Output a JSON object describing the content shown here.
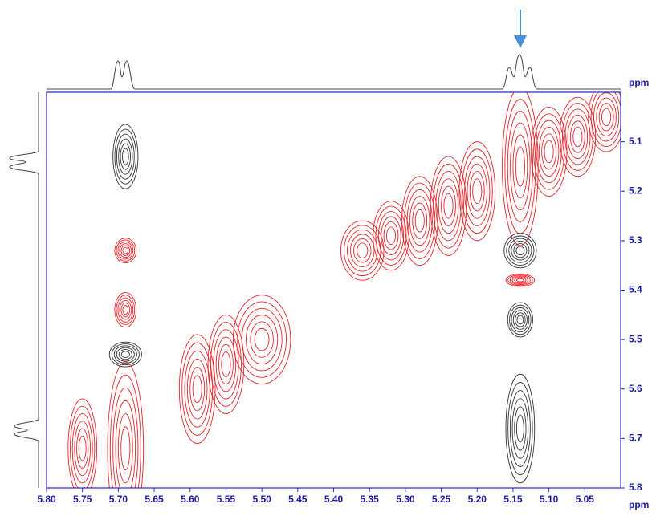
{
  "chart_data": {
    "type": "contour",
    "x_label": "ppm",
    "y_label": "ppm",
    "xlim": [
      5.8,
      5.0
    ],
    "ylim": [
      5.0,
      5.8
    ],
    "xticks": [
      {
        "value": 5.8,
        "label": "5.80"
      },
      5.75,
      {
        "value": 5.7,
        "label": "5.70"
      },
      5.65,
      {
        "value": 5.6,
        "label": "5.60"
      },
      5.55,
      {
        "value": 5.5,
        "label": "5.50"
      },
      5.45,
      {
        "value": 5.4,
        "label": "5.40"
      },
      5.35,
      {
        "value": 5.3,
        "label": "5.30"
      },
      5.25,
      {
        "value": 5.2,
        "label": "5.20"
      },
      5.15,
      {
        "value": 5.1,
        "label": "5.10"
      },
      5.05
    ],
    "yticks": [
      5.1,
      5.2,
      5.3,
      5.4,
      5.5,
      5.6,
      5.7,
      5.8
    ],
    "axis_color": "#2424d0",
    "peaks": [
      {
        "x": 5.69,
        "y": 5.13,
        "x_width": 0.035,
        "y_width": 0.13,
        "color": "#333333"
      },
      {
        "x": 5.69,
        "y": 5.32,
        "x_width": 0.03,
        "y_width": 0.05,
        "color": "#e8242a"
      },
      {
        "x": 5.69,
        "y": 5.44,
        "x_width": 0.03,
        "y_width": 0.07,
        "color": "#e8242a"
      },
      {
        "x": 5.69,
        "y": 5.53,
        "x_width": 0.045,
        "y_width": 0.05,
        "color": "#333333"
      },
      {
        "x": 5.69,
        "y": 5.72,
        "x_width": 0.05,
        "y_width": 0.35,
        "color": "#e8242a"
      },
      {
        "x": 5.14,
        "y": 5.15,
        "x_width": 0.05,
        "y_width": 0.32,
        "color": "#e8242a"
      },
      {
        "x": 5.14,
        "y": 5.32,
        "x_width": 0.045,
        "y_width": 0.07,
        "color": "#333333"
      },
      {
        "x": 5.14,
        "y": 5.38,
        "x_width": 0.04,
        "y_width": 0.025,
        "color": "#e8242a"
      },
      {
        "x": 5.14,
        "y": 5.46,
        "x_width": 0.035,
        "y_width": 0.07,
        "color": "#333333"
      },
      {
        "x": 5.14,
        "y": 5.68,
        "x_width": 0.04,
        "y_width": 0.22,
        "color": "#333333"
      },
      {
        "x": 5.75,
        "y": 5.72,
        "x_width": 0.04,
        "y_width": 0.2,
        "color": "#e8242a"
      },
      {
        "x": 5.59,
        "y": 5.6,
        "x_width": 0.05,
        "y_width": 0.22,
        "color": "#e8242a"
      },
      {
        "x": 5.55,
        "y": 5.55,
        "x_width": 0.05,
        "y_width": 0.2,
        "color": "#e8242a"
      },
      {
        "x": 5.5,
        "y": 5.5,
        "x_width": 0.08,
        "y_width": 0.18,
        "color": "#e8242a"
      },
      {
        "x": 5.36,
        "y": 5.32,
        "x_width": 0.06,
        "y_width": 0.12,
        "color": "#e8242a"
      },
      {
        "x": 5.32,
        "y": 5.29,
        "x_width": 0.05,
        "y_width": 0.14,
        "color": "#e8242a"
      },
      {
        "x": 5.28,
        "y": 5.26,
        "x_width": 0.05,
        "y_width": 0.18,
        "color": "#e8242a"
      },
      {
        "x": 5.24,
        "y": 5.23,
        "x_width": 0.05,
        "y_width": 0.2,
        "color": "#e8242a"
      },
      {
        "x": 5.2,
        "y": 5.2,
        "x_width": 0.05,
        "y_width": 0.2,
        "color": "#e8242a"
      },
      {
        "x": 5.1,
        "y": 5.12,
        "x_width": 0.05,
        "y_width": 0.18,
        "color": "#e8242a"
      },
      {
        "x": 5.06,
        "y": 5.09,
        "x_width": 0.05,
        "y_width": 0.16,
        "color": "#e8242a"
      },
      {
        "x": 5.02,
        "y": 5.05,
        "x_width": 0.05,
        "y_width": 0.14,
        "color": "#e8242a"
      }
    ]
  }
}
